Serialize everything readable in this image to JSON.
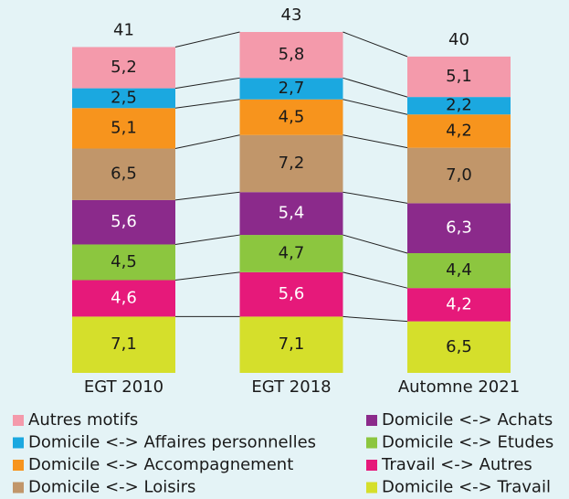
{
  "chart_data": {
    "type": "stacked_bar",
    "categories": [
      "EGT 2010",
      "EGT 2018",
      "Automne 2021"
    ],
    "totals": [
      41,
      43,
      40
    ],
    "series": [
      {
        "name": "Domicile <-> Travail",
        "color": "#d5df2b",
        "values": [
          7.1,
          7.1,
          6.5
        ],
        "value_labels": [
          "7,1",
          "7,1",
          "6,5"
        ]
      },
      {
        "name": "Travail <-> Autres",
        "color": "#e6197a",
        "values": [
          4.6,
          5.6,
          4.2
        ],
        "value_labels": [
          "4,6",
          "5,6",
          "4,2"
        ]
      },
      {
        "name": "Domicile <-> Etudes",
        "color": "#8cc63f",
        "values": [
          4.5,
          4.7,
          4.4
        ],
        "value_labels": [
          "4,5",
          "4,7",
          "4,4"
        ]
      },
      {
        "name": "Domicile <-> Achats",
        "color": "#8b2a8b",
        "values": [
          5.6,
          5.4,
          6.3
        ],
        "value_labels": [
          "5,6",
          "5,4",
          "6,3"
        ]
      },
      {
        "name": "Domicile <-> Loisirs",
        "color": "#c1966a",
        "values": [
          6.5,
          7.2,
          7.0
        ],
        "value_labels": [
          "6,5",
          "7,2",
          "7,0"
        ]
      },
      {
        "name": "Domicile <-> Accompagnement",
        "color": "#f7941d",
        "values": [
          5.1,
          4.5,
          4.2
        ],
        "value_labels": [
          "5,1",
          "4,5",
          "4,2"
        ]
      },
      {
        "name": "Domicile <-> Affaires personnelles",
        "color": "#1ba8e0",
        "values": [
          2.5,
          2.7,
          2.2
        ],
        "value_labels": [
          "2,5",
          "2,7",
          "2,2"
        ]
      },
      {
        "name": "Autres motifs",
        "color": "#f49aab",
        "values": [
          5.2,
          5.8,
          5.1
        ],
        "value_labels": [
          "5,2",
          "5,8",
          "5,1"
        ]
      }
    ]
  }
}
